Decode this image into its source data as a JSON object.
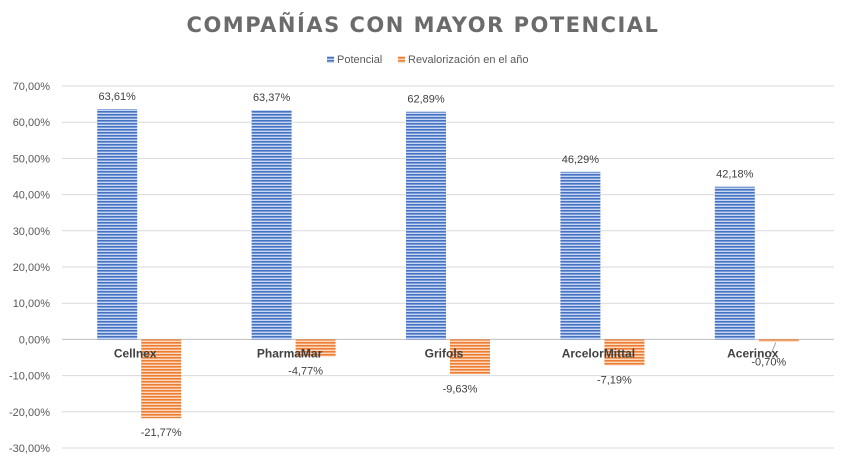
{
  "chart_data": {
    "type": "bar",
    "title": "COMPAÑÍAS CON MAYOR POTENCIAL",
    "xlabel": "",
    "ylabel": "",
    "categories": [
      "Cellnex",
      "PharmaMar",
      "Grifols",
      "ArcelorMittal",
      "Acerinox"
    ],
    "series": [
      {
        "name": "Potencial",
        "color": "#4472c4",
        "values": [
          63.61,
          63.37,
          62.89,
          46.29,
          42.18
        ],
        "labels": [
          "63,61%",
          "63,37%",
          "62,89%",
          "46,29%",
          "42,18%"
        ]
      },
      {
        "name": "Revalorización en el año",
        "color": "#ed7d31",
        "values": [
          -21.77,
          -4.77,
          -9.63,
          -7.19,
          -0.7
        ],
        "labels": [
          "-21,77%",
          "-4,77%",
          "-9,63%",
          "-7,19%",
          "-0,70%"
        ]
      }
    ],
    "ylim": [
      -30,
      70
    ],
    "yticks": [
      70,
      60,
      50,
      40,
      30,
      20,
      10,
      0,
      -10,
      -20,
      -30
    ],
    "ytick_labels": [
      "70,00%",
      "60,00%",
      "50,00%",
      "40,00%",
      "30,00%",
      "20,00%",
      "10,00%",
      "0,00%",
      "-10,00%",
      "-20,00%",
      "-30,00%"
    ],
    "grid": true,
    "legend": "top-center"
  }
}
